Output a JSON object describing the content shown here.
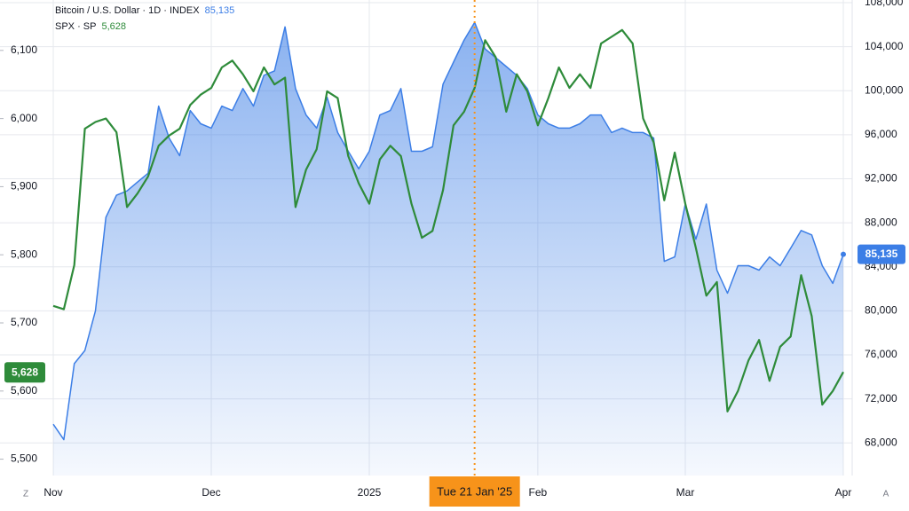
{
  "chart_data": {
    "type": "line",
    "categories": [
      "Nov",
      null,
      null,
      null,
      null,
      null,
      null,
      null,
      null,
      null,
      null,
      null,
      null,
      null,
      null,
      "Dec",
      null,
      null,
      null,
      null,
      null,
      null,
      null,
      null,
      null,
      null,
      null,
      null,
      null,
      null,
      "2025",
      null,
      null,
      null,
      null,
      null,
      null,
      null,
      null,
      null,
      "Tue 21 Jan '25",
      null,
      null,
      null,
      null,
      null,
      "Feb",
      null,
      null,
      null,
      null,
      null,
      null,
      null,
      null,
      null,
      null,
      null,
      null,
      null,
      "Mar",
      null,
      null,
      null,
      null,
      null,
      null,
      null,
      null,
      null,
      null,
      null,
      null,
      null,
      null,
      "Apr"
    ],
    "crosshair": {
      "category": 40,
      "color": "#f7931a"
    },
    "series": [
      {
        "name": "Bitcoin / U.S. Dollar · 1D · INDEX",
        "color": "#3c7ee6",
        "axis": "y2",
        "area": true,
        "last_value_label": "85,135",
        "values": [
          69700,
          68300,
          75200,
          76400,
          80000,
          88500,
          90500,
          90900,
          91700,
          92500,
          98600,
          95700,
          94100,
          98200,
          97000,
          96600,
          98600,
          98200,
          100200,
          98600,
          101400,
          101800,
          105800,
          100200,
          97800,
          96600,
          99400,
          96200,
          94500,
          92900,
          94500,
          97800,
          98200,
          100200,
          94500,
          94500,
          94900,
          100600,
          102600,
          104600,
          106200,
          103800,
          103000,
          102200,
          101400,
          100200,
          97800,
          97000,
          96600,
          96600,
          97000,
          97800,
          97800,
          96200,
          96600,
          96200,
          96200,
          95700,
          84500,
          84900,
          89700,
          86500,
          89700,
          83700,
          81600,
          84100,
          84100,
          83700,
          84900,
          84100,
          85700,
          87300,
          86900,
          84100,
          82500,
          85135
        ]
      },
      {
        "name": "SPX · SP",
        "color": "#2e8b3a",
        "last_value_label": "5,628",
        "values": [
          5725,
          5720,
          5785,
          5985,
          5995,
          6000,
          5980,
          5870,
          5890,
          5915,
          5960,
          5975,
          5985,
          6020,
          6035,
          6045,
          6075,
          6085,
          6065,
          6040,
          6075,
          6050,
          6060,
          5870,
          5925,
          5955,
          6040,
          6030,
          5945,
          5905,
          5875,
          5940,
          5960,
          5945,
          5875,
          5825,
          5835,
          5895,
          5990,
          6010,
          6045,
          6115,
          6090,
          6010,
          6065,
          6040,
          5990,
          6030,
          6075,
          6045,
          6065,
          6045,
          6110,
          6120,
          6130,
          6110,
          6000,
          5965,
          5880,
          5950,
          5875,
          5810,
          5740,
          5760,
          5570,
          5600,
          5645,
          5675,
          5615,
          5665,
          5680,
          5770,
          5710,
          5580,
          5600,
          5628
        ]
      }
    ],
    "ylim": [
      5476,
      6174
    ],
    "yticks": [
      {
        "value": 5500,
        "label": "5,500"
      },
      {
        "value": 5600,
        "label": "5,600"
      },
      {
        "value": 5700,
        "label": "5,700"
      },
      {
        "value": 5800,
        "label": "5,800"
      },
      {
        "value": 5900,
        "label": "5,900"
      },
      {
        "value": 6000,
        "label": "6,000"
      },
      {
        "value": 6100,
        "label": "6,100"
      }
    ],
    "y2lim": [
      65040,
      108242
    ],
    "y2ticks": [
      {
        "value": 68000,
        "label": "68,000"
      },
      {
        "value": 72000,
        "label": "72,000"
      },
      {
        "value": 76000,
        "label": "76,000"
      },
      {
        "value": 80000,
        "label": "80,000"
      },
      {
        "value": 84000,
        "label": "84,000"
      },
      {
        "value": 88000,
        "label": "88,000"
      },
      {
        "value": 92000,
        "label": "92,000"
      },
      {
        "value": 96000,
        "label": "96,000"
      },
      {
        "value": 100000,
        "label": "100,000"
      },
      {
        "value": 104000,
        "label": "104,000"
      },
      {
        "value": 108000,
        "label": "108,000"
      }
    ],
    "grid": true
  },
  "controls": [
    "Z",
    "A"
  ]
}
